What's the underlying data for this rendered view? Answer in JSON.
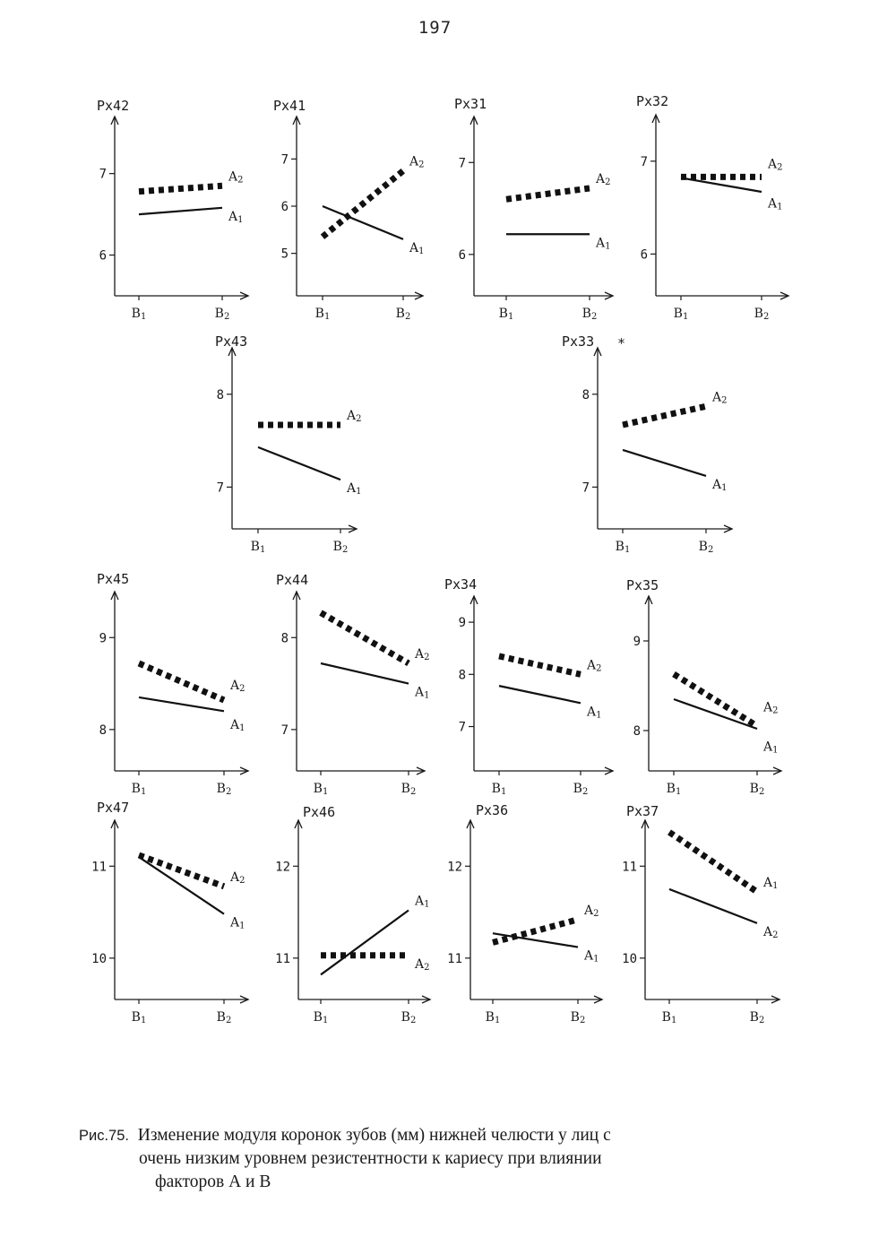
{
  "page_number": "197",
  "caption": {
    "prefix": "Рис.75.",
    "line1": "Изменение модуля коронок зубов (мм) нижней челюсти у лиц с",
    "line2": "очень низким уровнем резистентности к кариесу при влиянии",
    "line3": "факторов А и В"
  },
  "chart_data": [
    {
      "type": "line",
      "title": "Px42",
      "categories": [
        "B1",
        "B2"
      ],
      "yticks": [
        "6",
        "7"
      ],
      "ytick_values": [
        6,
        7
      ],
      "ylim": [
        5.5,
        7.7
      ],
      "series": [
        {
          "name": "A2",
          "style": "dotted",
          "values": [
            6.78,
            6.85
          ]
        },
        {
          "name": "A1",
          "style": "solid",
          "values": [
            6.5,
            6.58
          ]
        }
      ]
    },
    {
      "type": "line",
      "title": "Px41",
      "categories": [
        "B1",
        "B2"
      ],
      "yticks": [
        "5",
        "6",
        "7"
      ],
      "ytick_values": [
        5,
        6,
        7
      ],
      "ylim": [
        4.1,
        7.9
      ],
      "series": [
        {
          "name": "A2",
          "style": "dotted",
          "values": [
            5.35,
            6.75
          ]
        },
        {
          "name": "A1",
          "style": "solid",
          "values": [
            6.0,
            5.3
          ]
        }
      ]
    },
    {
      "type": "line",
      "title": "Px31",
      "categories": [
        "B1",
        "B2"
      ],
      "yticks": [
        "6",
        "7"
      ],
      "ytick_values": [
        6,
        7
      ],
      "ylim": [
        5.55,
        7.5
      ],
      "series": [
        {
          "name": "A2",
          "style": "dotted",
          "values": [
            6.6,
            6.72
          ]
        },
        {
          "name": "A1",
          "style": "solid",
          "values": [
            6.22,
            6.22
          ]
        }
      ]
    },
    {
      "type": "line",
      "title": "Px32",
      "categories": [
        "B1",
        "B2"
      ],
      "yticks": [
        "6",
        "7"
      ],
      "ytick_values": [
        6,
        7
      ],
      "ylim": [
        5.55,
        7.5
      ],
      "series": [
        {
          "name": "A2",
          "style": "dotted",
          "values": [
            6.83,
            6.83
          ]
        },
        {
          "name": "A1",
          "style": "solid",
          "values": [
            6.82,
            6.67
          ]
        }
      ]
    },
    {
      "type": "line",
      "title": "Px43",
      "categories": [
        "B1",
        "B2"
      ],
      "yticks": [
        "7",
        "8"
      ],
      "ytick_values": [
        7,
        8
      ],
      "ylim": [
        6.55,
        8.5
      ],
      "series": [
        {
          "name": "A2",
          "style": "dotted",
          "values": [
            7.67,
            7.67
          ]
        },
        {
          "name": "A1",
          "style": "solid",
          "values": [
            7.43,
            7.08
          ]
        }
      ]
    },
    {
      "type": "line",
      "title": "Px33",
      "marker": "*",
      "categories": [
        "B1",
        "B2"
      ],
      "yticks": [
        "7",
        "8"
      ],
      "ytick_values": [
        7,
        8
      ],
      "ylim": [
        6.55,
        8.5
      ],
      "series": [
        {
          "name": "A2",
          "style": "dotted",
          "values": [
            7.67,
            7.87
          ]
        },
        {
          "name": "A1",
          "style": "solid",
          "values": [
            7.4,
            7.12
          ]
        }
      ]
    },
    {
      "type": "line",
      "title": "Px45",
      "categories": [
        "B1",
        "B2"
      ],
      "yticks": [
        "8",
        "9"
      ],
      "ytick_values": [
        8,
        9
      ],
      "ylim": [
        7.55,
        9.5
      ],
      "series": [
        {
          "name": "A2",
          "style": "dotted",
          "values": [
            8.72,
            8.32
          ]
        },
        {
          "name": "A1",
          "style": "solid",
          "values": [
            8.35,
            8.2
          ]
        }
      ]
    },
    {
      "type": "line",
      "title": "Px44",
      "categories": [
        "B1",
        "B2"
      ],
      "yticks": [
        "7",
        "8"
      ],
      "ytick_values": [
        7,
        8
      ],
      "ylim": [
        6.55,
        8.5
      ],
      "series": [
        {
          "name": "A2",
          "style": "dotted",
          "values": [
            8.27,
            7.72
          ]
        },
        {
          "name": "A1",
          "style": "solid",
          "values": [
            7.72,
            7.5
          ]
        }
      ]
    },
    {
      "type": "line",
      "title": "Px34",
      "categories": [
        "B1",
        "B2"
      ],
      "yticks": [
        "7",
        "8",
        "9"
      ],
      "ytick_values": [
        7,
        8,
        9
      ],
      "ylim": [
        6.15,
        9.5
      ],
      "series": [
        {
          "name": "A2",
          "style": "dotted",
          "values": [
            8.35,
            8.0
          ]
        },
        {
          "name": "A1",
          "style": "solid",
          "values": [
            7.78,
            7.45
          ]
        }
      ]
    },
    {
      "type": "line",
      "title": "Px35",
      "categories": [
        "B1",
        "B2"
      ],
      "yticks": [
        "8",
        "9"
      ],
      "ytick_values": [
        8,
        9
      ],
      "ylim": [
        7.55,
        9.5
      ],
      "series": [
        {
          "name": "A2",
          "style": "dotted",
          "values": [
            8.63,
            8.05
          ]
        },
        {
          "name": "A1",
          "style": "solid",
          "values": [
            8.35,
            8.02
          ]
        }
      ]
    },
    {
      "type": "line",
      "title": "Px47",
      "categories": [
        "B1",
        "B2"
      ],
      "yticks": [
        "10",
        "11"
      ],
      "ytick_values": [
        10,
        11
      ],
      "ylim": [
        9.55,
        11.5
      ],
      "series": [
        {
          "name": "A2",
          "style": "dotted",
          "values": [
            11.12,
            10.78
          ]
        },
        {
          "name": "A1",
          "style": "solid",
          "values": [
            11.1,
            10.48
          ]
        }
      ]
    },
    {
      "type": "line",
      "title": "Px46",
      "categories": [
        "B1",
        "B2"
      ],
      "yticks": [
        "11",
        "12"
      ],
      "ytick_values": [
        11,
        12
      ],
      "ylim": [
        10.55,
        12.5
      ],
      "series": [
        {
          "name": "A1",
          "style": "solid",
          "values": [
            10.82,
            11.52
          ]
        },
        {
          "name": "A2",
          "style": "dotted",
          "values": [
            11.03,
            11.03
          ]
        }
      ]
    },
    {
      "type": "line",
      "title": "Px36",
      "categories": [
        "B1",
        "B2"
      ],
      "yticks": [
        "11",
        "12"
      ],
      "ytick_values": [
        11,
        12
      ],
      "ylim": [
        10.55,
        12.5
      ],
      "series": [
        {
          "name": "A2",
          "style": "dotted",
          "values": [
            11.17,
            11.42
          ]
        },
        {
          "name": "A1",
          "style": "solid",
          "values": [
            11.27,
            11.12
          ]
        }
      ]
    },
    {
      "type": "line",
      "title": "Px37",
      "categories": [
        "B1",
        "B2"
      ],
      "yticks": [
        "10",
        "11"
      ],
      "ytick_values": [
        10,
        11
      ],
      "ylim": [
        9.55,
        11.5
      ],
      "series": [
        {
          "name": "A1",
          "style": "dotted",
          "values": [
            11.37,
            10.72
          ]
        },
        {
          "name": "A2",
          "style": "solid",
          "values": [
            10.75,
            10.38
          ]
        }
      ]
    }
  ]
}
